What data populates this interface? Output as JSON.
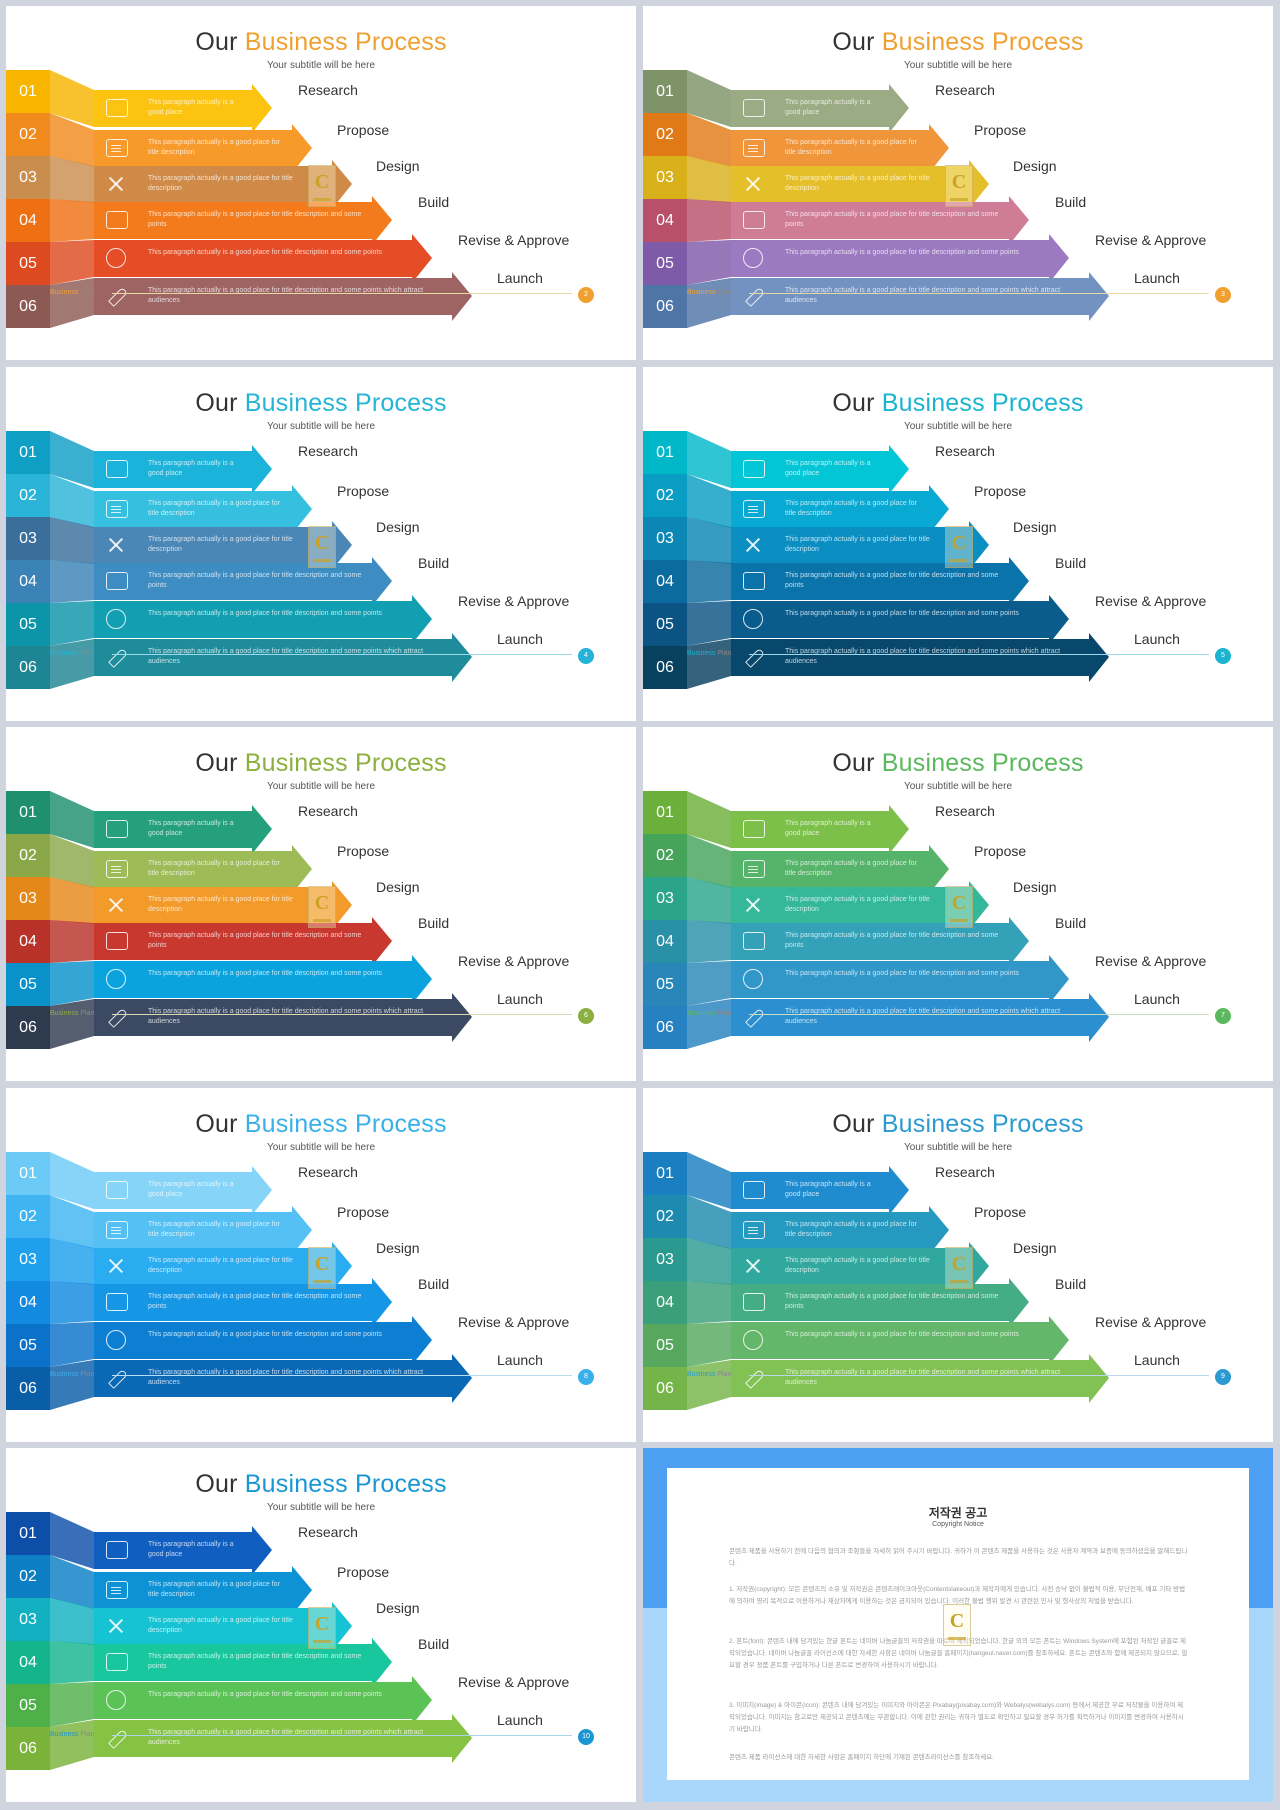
{
  "slides": [
    {
      "heading_prefix": "Our",
      "heading_accent": "Business Process",
      "subtitle": "Your subtitle will be here",
      "footer_brand": "Business",
      "footer_plan": "Plan",
      "page": "2",
      "accent": "#f0a030",
      "line_color": "#e6d9a6",
      "number_colors": [
        "#f7b500",
        "#f08a1d",
        "#c98e4e",
        "#ef7012",
        "#dd4a1f",
        "#8d5a53"
      ],
      "arrow_colors": [
        "#fcc310",
        "#f89a2a",
        "#cf8a48",
        "#f37b1b",
        "#e44d26",
        "#9e6363"
      ],
      "steps": [
        {
          "num": "01",
          "label": "Research",
          "text": "This paragraph actually is a good place"
        },
        {
          "num": "02",
          "label": "Propose",
          "text": "This paragraph actually is a good place for title description"
        },
        {
          "num": "03",
          "label": "Design",
          "text": "This paragraph actually is a good place for title description"
        },
        {
          "num": "04",
          "label": "Build",
          "text": "This paragraph actually is a good place for title description and some points"
        },
        {
          "num": "05",
          "label": "Revise & Approve",
          "text": "This paragraph actually is a good place for title description and some points"
        },
        {
          "num": "06",
          "label": "Launch",
          "text": "This paragraph actually is a good place for title description and some points which attract audiences"
        }
      ]
    },
    {
      "heading_prefix": "Our",
      "heading_accent": "Business Process",
      "subtitle": "Your subtitle will be here",
      "footer_brand": "Business",
      "footer_plan": "Plan",
      "page": "3",
      "accent": "#f0a030",
      "line_color": "#e6d9a6",
      "number_colors": [
        "#7e9368",
        "#e07a17",
        "#d8b01a",
        "#b8506a",
        "#7f5aa8",
        "#4f74a6"
      ],
      "arrow_colors": [
        "#9bab84",
        "#f0953a",
        "#e5bf29",
        "#cf7c97",
        "#9c7ac1",
        "#7292c2"
      ],
      "steps": [
        {
          "num": "01",
          "label": "Research",
          "text": "This paragraph actually is a good place"
        },
        {
          "num": "02",
          "label": "Propose",
          "text": "This paragraph actually is a good place for title description"
        },
        {
          "num": "03",
          "label": "Design",
          "text": "This paragraph actually is a good place for title description"
        },
        {
          "num": "04",
          "label": "Build",
          "text": "This paragraph actually is a good place for title description and some points"
        },
        {
          "num": "05",
          "label": "Revise & Approve",
          "text": "This paragraph actually is a good place for title description and some points"
        },
        {
          "num": "06",
          "label": "Launch",
          "text": "This paragraph actually is a good place for title description and some points which attract audiences"
        }
      ]
    },
    {
      "heading_prefix": "Our",
      "heading_accent": "Business Process",
      "subtitle": "Your subtitle will be here",
      "footer_brand": "Business",
      "footer_plan": "Plan",
      "page": "4",
      "accent": "#25b4d8",
      "line_color": "#9fd8ea",
      "number_colors": [
        "#0f9ec4",
        "#2ab5d8",
        "#3a6f9c",
        "#3b82b6",
        "#0c95a8",
        "#1d8594"
      ],
      "arrow_colors": [
        "#1cb3da",
        "#35c0e0",
        "#4a86b6",
        "#3d8cc2",
        "#129fb2",
        "#1f8c9c"
      ],
      "steps": [
        {
          "num": "01",
          "label": "Research",
          "text": "This paragraph actually is a good place"
        },
        {
          "num": "02",
          "label": "Propose",
          "text": "This paragraph actually is a good place for title description"
        },
        {
          "num": "03",
          "label": "Design",
          "text": "This paragraph actually is a good place for title description"
        },
        {
          "num": "04",
          "label": "Build",
          "text": "This paragraph actually is a good place for title description and some points"
        },
        {
          "num": "05",
          "label": "Revise & Approve",
          "text": "This paragraph actually is a good place for title description and some points"
        },
        {
          "num": "06",
          "label": "Launch",
          "text": "This paragraph actually is a good place for title description and some points which attract audiences"
        }
      ]
    },
    {
      "heading_prefix": "Our",
      "heading_accent": "Business Process",
      "subtitle": "Your subtitle will be here",
      "footer_brand": "Business",
      "footer_plan": "Plan",
      "page": "5",
      "accent": "#1ab4d0",
      "line_color": "#9fd8ea",
      "number_colors": [
        "#02b8c8",
        "#0a9dc4",
        "#0c86b5",
        "#0b6a9e",
        "#0a5382",
        "#08405f"
      ],
      "arrow_colors": [
        "#02c5d6",
        "#08a9d2",
        "#0b8ec2",
        "#0a74aa",
        "#095c8c",
        "#07486c"
      ],
      "steps": [
        {
          "num": "01",
          "label": "Research",
          "text": "This paragraph actually is a good place"
        },
        {
          "num": "02",
          "label": "Propose",
          "text": "This paragraph actually is a good place for title description"
        },
        {
          "num": "03",
          "label": "Design",
          "text": "This paragraph actually is a good place for title description"
        },
        {
          "num": "04",
          "label": "Build",
          "text": "This paragraph actually is a good place for title description and some points"
        },
        {
          "num": "05",
          "label": "Revise & Approve",
          "text": "This paragraph actually is a good place for title description and some points"
        },
        {
          "num": "06",
          "label": "Launch",
          "text": "This paragraph actually is a good place for title description and some points which attract audiences"
        }
      ]
    },
    {
      "heading_prefix": "Our",
      "heading_accent": "Business Process",
      "subtitle": "Your subtitle will be here",
      "footer_brand": "Business",
      "footer_plan": "Plan",
      "page": "6",
      "accent": "#8cb040",
      "line_color": "#dcd8b0",
      "number_colors": [
        "#1f8f6e",
        "#8aa84a",
        "#e5881a",
        "#b8322a",
        "#0892c9",
        "#2e3a4e"
      ],
      "arrow_colors": [
        "#25a07c",
        "#9dbb56",
        "#f29a2a",
        "#c8382e",
        "#0aa3de",
        "#3b4a62"
      ],
      "steps": [
        {
          "num": "01",
          "label": "Research",
          "text": "This paragraph actually is a good place"
        },
        {
          "num": "02",
          "label": "Propose",
          "text": "This paragraph actually is a good place for title description"
        },
        {
          "num": "03",
          "label": "Design",
          "text": "This paragraph actually is a good place for title description"
        },
        {
          "num": "04",
          "label": "Build",
          "text": "This paragraph actually is a good place for title description and some points"
        },
        {
          "num": "05",
          "label": "Revise & Approve",
          "text": "This paragraph actually is a good place for title description and some points"
        },
        {
          "num": "06",
          "label": "Launch",
          "text": "This paragraph actually is a good place for title description and some points which attract audiences"
        }
      ]
    },
    {
      "heading_prefix": "Our",
      "heading_accent": "Business Process",
      "subtitle": "Your subtitle will be here",
      "footer_brand": "Business",
      "footer_plan": "Plan",
      "page": "7",
      "accent": "#5bb85c",
      "line_color": "#c8dcc0",
      "number_colors": [
        "#6bb03a",
        "#46a35a",
        "#2ba58a",
        "#2a90a8",
        "#2887b8",
        "#2681c0"
      ],
      "arrow_colors": [
        "#7cc04a",
        "#56b36a",
        "#35b79a",
        "#33a1b8",
        "#3097c8",
        "#2b8fd0"
      ],
      "steps": [
        {
          "num": "01",
          "label": "Research",
          "text": "This paragraph actually is a good place"
        },
        {
          "num": "02",
          "label": "Propose",
          "text": "This paragraph actually is a good place for title description"
        },
        {
          "num": "03",
          "label": "Design",
          "text": "This paragraph actually is a good place for title description"
        },
        {
          "num": "04",
          "label": "Build",
          "text": "This paragraph actually is a good place for title description and some points"
        },
        {
          "num": "05",
          "label": "Revise & Approve",
          "text": "This paragraph actually is a good place for title description and some points"
        },
        {
          "num": "06",
          "label": "Launch",
          "text": "This paragraph actually is a good place for title description and some points which attract audiences"
        }
      ]
    },
    {
      "heading_prefix": "Our",
      "heading_accent": "Business Process",
      "subtitle": "Your subtitle will be here",
      "footer_brand": "Business",
      "footer_plan": "Plan",
      "page": "8",
      "accent": "#39b0ea",
      "line_color": "#b8dcf0",
      "number_colors": [
        "#6ccaf6",
        "#3fb4f2",
        "#1fa0ec",
        "#118ae0",
        "#0b72c9",
        "#0a5ea8"
      ],
      "arrow_colors": [
        "#86d4f8",
        "#55c0f4",
        "#2aacf0",
        "#1697e6",
        "#0d7fd2",
        "#0b68b4"
      ],
      "steps": [
        {
          "num": "01",
          "label": "Research",
          "text": "This paragraph actually is a good place"
        },
        {
          "num": "02",
          "label": "Propose",
          "text": "This paragraph actually is a good place for title description"
        },
        {
          "num": "03",
          "label": "Design",
          "text": "This paragraph actually is a good place for title description"
        },
        {
          "num": "04",
          "label": "Build",
          "text": "This paragraph actually is a good place for title description and some points"
        },
        {
          "num": "05",
          "label": "Revise & Approve",
          "text": "This paragraph actually is a good place for title description and some points"
        },
        {
          "num": "06",
          "label": "Launch",
          "text": "This paragraph actually is a good place for title description and some points which attract audiences"
        }
      ]
    },
    {
      "heading_prefix": "Our",
      "heading_accent": "Business Process",
      "subtitle": "Your subtitle will be here",
      "footer_brand": "Business",
      "footer_plan": "Plan",
      "page": "9",
      "accent": "#2a9ad0",
      "line_color": "#b8d8ec",
      "number_colors": [
        "#1a7fc0",
        "#1e8ab0",
        "#2a9a90",
        "#3a9f7a",
        "#57a85e",
        "#74b448"
      ],
      "arrow_colors": [
        "#1f8cd0",
        "#2599bf",
        "#31a89e",
        "#44ad86",
        "#63b66a",
        "#82c254"
      ],
      "steps": [
        {
          "num": "01",
          "label": "Research",
          "text": "This paragraph actually is a good place"
        },
        {
          "num": "02",
          "label": "Propose",
          "text": "This paragraph actually is a good place for title description"
        },
        {
          "num": "03",
          "label": "Design",
          "text": "This paragraph actually is a good place for title description"
        },
        {
          "num": "04",
          "label": "Build",
          "text": "This paragraph actually is a good place for title description and some points"
        },
        {
          "num": "05",
          "label": "Revise & Approve",
          "text": "This paragraph actually is a good place for title description and some points"
        },
        {
          "num": "06",
          "label": "Launch",
          "text": "This paragraph actually is a good place for title description and some points which attract audiences"
        }
      ]
    },
    {
      "heading_prefix": "Our",
      "heading_accent": "Business Process",
      "subtitle": "Your subtitle will be here",
      "footer_brand": "Business",
      "footer_plan": "Plan",
      "page": "10",
      "accent": "#1a96d4",
      "line_color": "#a8d4ec",
      "number_colors": [
        "#0d4fa8",
        "#0b7ec4",
        "#12b0c0",
        "#14b48c",
        "#4fb04a",
        "#7ab23a"
      ],
      "arrow_colors": [
        "#105ec0",
        "#0d92d6",
        "#16c3d2",
        "#19c79e",
        "#5bc256",
        "#86c244"
      ],
      "steps": [
        {
          "num": "01",
          "label": "Research",
          "text": "This paragraph actually is a good place"
        },
        {
          "num": "02",
          "label": "Propose",
          "text": "This paragraph actually is a good place for title description"
        },
        {
          "num": "03",
          "label": "Design",
          "text": "This paragraph actually is a good place for title description"
        },
        {
          "num": "04",
          "label": "Build",
          "text": "This paragraph actually is a good place for title description and some points"
        },
        {
          "num": "05",
          "label": "Revise & Approve",
          "text": "This paragraph actually is a good place for title description and some points"
        },
        {
          "num": "06",
          "label": "Launch",
          "text": "This paragraph actually is a good place for title description and some points which attract audiences"
        }
      ]
    }
  ],
  "copyright": {
    "title": "저작권 공고",
    "subtitle": "Copyright Notice",
    "intro": "콘텐츠 제품을 사용하기 전에 다음의 협의과 조항들을 자세히 읽어 주시기 바랍니다. 귀하가 이 콘텐츠 제품을 사용하는 것은 사용자 계약과 보증에 동의하셨음을 말해드립니다.",
    "item1": "1. 저작권(copyright): 모든 콘텐츠의 소유 및 저작권은 콘텐츠레이크아웃(Contentslakeout)과 제작자에게 있습니다. 사전 승낙 없이 불법적 이용, 무단전재, 배포 기타 방법에 의하여 영리 목적으로 이용하거나 재삼자에게 이용하는 것은 금지되어 있습니다. 이러한 불법 행위 발견 시 관련된 민사 및 형사상의 처벌을 받습니다.",
    "item2": "2. 폰트(font): 콘텐츠 내에 담겨있는 한글 폰트는 네이버 나눔글꼴의 저작권을 따르며 제작되었습니다. 한글 외의 모든 폰트는 Windows System에 포함된 저작된 글꼴로 제작되었습니다. 네이버 나눔글꼴 라이선스에 대한 자세한 사항은 네이버 나눔글꼴 홈페이지(hangeul.naver.com)를 참조하세요. 폰트는 콘텐츠와 함께 제공되지 않으므로, 필요할 경우 정품 폰트를 구입하거나 다른 폰트로 변경하여 사용하시기 바랍니다.",
    "item3": "3. 이미지(image) & 아이콘(icon): 콘텐츠 내에 담겨있는 이미지와 아이콘은 Pixabay(pixabay.com)와 Webalys(webalys.com) 등에서 제공한 무료 저작물을 이용하여 제작되었습니다. 이미지는 참고로만 제공되고 콘텐츠에는 무관합니다. 이에 관한 권리는 귀하가 별도로 확인하고 필요할 경우 허가를 획득하거나 이미지를 변경하여 사용하시기 바랍니다.",
    "outro": "콘텐츠 제품 라이선스에 대한 자세한 사항은 홈페이지 하단에 기재된 콘텐츠라이선스를 참조하세요."
  }
}
